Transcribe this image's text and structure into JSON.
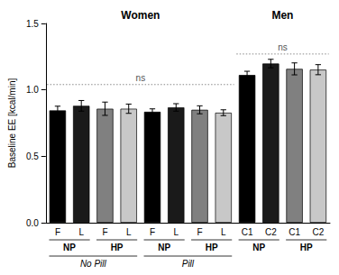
{
  "chart_data": {
    "type": "bar",
    "ylabel": "Baseline EE [kcal/min]",
    "categories": [
      "F",
      "L",
      "F",
      "L",
      "F",
      "L",
      "F",
      "L",
      "C1",
      "C2",
      "C1",
      "C2"
    ],
    "values": [
      0.845,
      0.88,
      0.858,
      0.858,
      0.835,
      0.868,
      0.85,
      0.828,
      1.112,
      1.198,
      1.158,
      1.152
    ],
    "errors": [
      0.032,
      0.04,
      0.05,
      0.035,
      0.022,
      0.028,
      0.03,
      0.022,
      0.028,
      0.032,
      0.045,
      0.038
    ],
    "colors": [
      "#000000",
      "#1a1a1a",
      "#808080",
      "#c8c8c8",
      "#000000",
      "#1a1a1a",
      "#808080",
      "#c8c8c8",
      "#000000",
      "#1a1a1a",
      "#808080",
      "#c8c8c8"
    ],
    "group_labels": [
      [
        "NP",
        "NP",
        "HP",
        "HP",
        "NP",
        "NP",
        "HP",
        "HP",
        "NP",
        "NP",
        "HP",
        "HP"
      ],
      [
        "No Pill",
        "No Pill",
        "No Pill",
        "No Pill",
        "Pill",
        "Pill",
        "Pill",
        "Pill",
        null,
        null,
        null,
        null
      ]
    ],
    "section_titles": [
      "Women",
      "Women",
      "Women",
      "Women",
      "Women",
      "Women",
      "Women",
      "Women",
      "Men",
      "Men",
      "Men",
      "Men"
    ],
    "annotations": [
      {
        "text": "ns",
        "y": 1.04,
        "section": "Women"
      },
      {
        "text": "ns",
        "y": 1.27,
        "section": "Men"
      }
    ],
    "ylim": [
      0,
      1.5
    ],
    "yticks": [
      {
        "value": 0.0,
        "label": "0.0"
      },
      {
        "value": 0.5,
        "label": "0.5"
      },
      {
        "value": 1.0,
        "label": "1.0"
      },
      {
        "value": 1.5,
        "label": "1.5"
      }
    ],
    "grid": false
  }
}
